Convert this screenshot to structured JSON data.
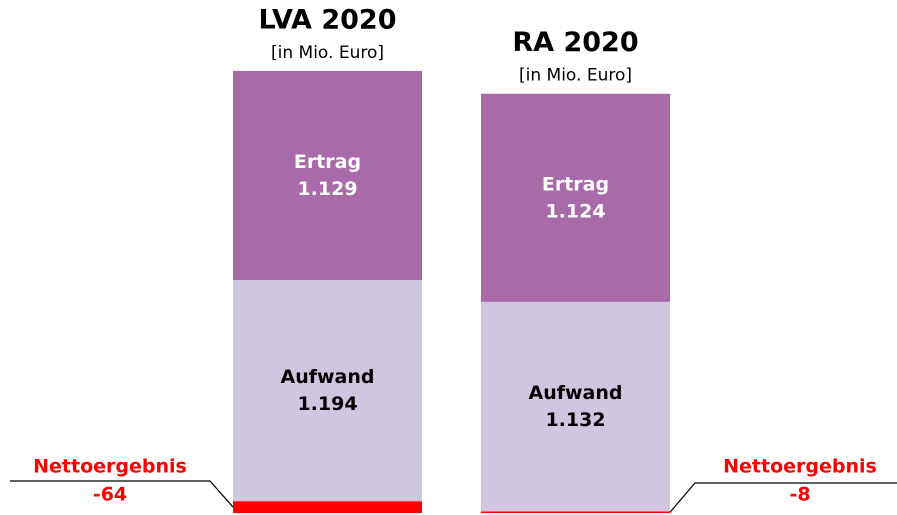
{
  "chart_data": {
    "type": "stacked-bar",
    "categories": [
      "LVA 2020",
      "RA 2020"
    ],
    "subtitle": "[in Mio. Euro]",
    "series": [
      {
        "name": "Nettoergebnis",
        "color": "#ff0000",
        "values": [
          -64,
          -8
        ]
      },
      {
        "name": "Aufwand",
        "color": "#d1c6e0",
        "values": [
          1194,
          1132
        ],
        "value_labels": [
          "1.194",
          "1.132"
        ]
      },
      {
        "name": "Ertrag",
        "color": "#a86aa8",
        "values": [
          1129,
          1124
        ],
        "value_labels": [
          "1.129",
          "1.124"
        ]
      }
    ]
  }
}
